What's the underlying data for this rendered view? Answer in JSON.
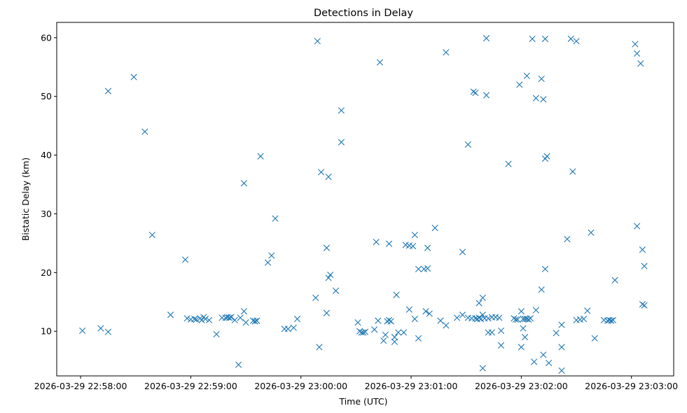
{
  "chart_data": {
    "type": "scatter",
    "title": "Detections in Delay",
    "xlabel": "Time (UTC)",
    "ylabel": "Bistatic Delay (km)",
    "marker": "x",
    "color": "#1f77b4",
    "xlim": [
      "2026-03-29 22:57:47",
      "2026-03-29 23:03:23"
    ],
    "ylim": [
      2.4,
      62.6
    ],
    "xticks": [
      "2026-03-29 22:58:00",
      "2026-03-29 22:59:00",
      "2026-03-29 23:00:00",
      "2026-03-29 23:01:00",
      "2026-03-29 23:02:00",
      "2026-03-29 23:03:00"
    ],
    "yticks": [
      10,
      20,
      30,
      40,
      50,
      60
    ],
    "grid": false,
    "points": [
      [
        "22:58:01",
        10.1
      ],
      [
        "22:58:11",
        10.5
      ],
      [
        "22:58:15",
        50.9
      ],
      [
        "22:58:15",
        9.9
      ],
      [
        "22:58:29",
        53.3
      ],
      [
        "22:58:35",
        44.0
      ],
      [
        "22:58:39",
        26.4
      ],
      [
        "22:58:49",
        12.8
      ],
      [
        "22:58:57",
        22.2
      ],
      [
        "22:58:58",
        12.2
      ],
      [
        "22:59:00",
        12.0
      ],
      [
        "22:59:02",
        12.1
      ],
      [
        "22:59:03",
        12.0
      ],
      [
        "22:59:05",
        12.2
      ],
      [
        "22:59:06",
        11.9
      ],
      [
        "22:59:07",
        12.4
      ],
      [
        "22:59:08",
        12.1
      ],
      [
        "22:59:10",
        11.9
      ],
      [
        "22:59:14",
        9.5
      ],
      [
        "22:59:17",
        12.3
      ],
      [
        "22:59:19",
        12.3
      ],
      [
        "22:59:20",
        12.4
      ],
      [
        "22:59:21",
        12.3
      ],
      [
        "22:59:22",
        12.4
      ],
      [
        "22:59:24",
        11.9
      ],
      [
        "22:59:26",
        4.3
      ],
      [
        "22:59:27",
        12.3
      ],
      [
        "22:59:29",
        35.2
      ],
      [
        "22:59:29",
        13.4
      ],
      [
        "22:59:30",
        11.5
      ],
      [
        "22:59:34",
        11.8
      ],
      [
        "22:59:35",
        11.7
      ],
      [
        "22:59:36",
        11.8
      ],
      [
        "22:59:38",
        39.8
      ],
      [
        "22:59:42",
        21.7
      ],
      [
        "22:59:44",
        22.9
      ],
      [
        "22:59:46",
        29.2
      ],
      [
        "22:59:51",
        10.4
      ],
      [
        "22:59:53",
        10.4
      ],
      [
        "22:59:56",
        10.6
      ],
      [
        "22:59:58",
        12.1
      ],
      [
        "23:00:08",
        15.7
      ],
      [
        "23:00:09",
        59.4
      ],
      [
        "23:00:10",
        7.3
      ],
      [
        "23:00:11",
        37.1
      ],
      [
        "23:00:14",
        24.2
      ],
      [
        "23:00:14",
        13.1
      ],
      [
        "23:00:15",
        36.3
      ],
      [
        "23:00:15",
        19.1
      ],
      [
        "23:00:16",
        19.6
      ],
      [
        "23:00:19",
        16.9
      ],
      [
        "23:00:22",
        47.6
      ],
      [
        "23:00:22",
        42.2
      ],
      [
        "23:00:31",
        11.5
      ],
      [
        "23:00:32",
        10.0
      ],
      [
        "23:00:33",
        9.8
      ],
      [
        "23:00:34",
        9.8
      ],
      [
        "23:00:35",
        9.9
      ],
      [
        "23:00:40",
        10.3
      ],
      [
        "23:00:41",
        25.2
      ],
      [
        "23:00:42",
        11.8
      ],
      [
        "23:00:43",
        55.8
      ],
      [
        "23:00:45",
        8.4
      ],
      [
        "23:00:46",
        9.4
      ],
      [
        "23:00:47",
        11.7
      ],
      [
        "23:00:48",
        24.9
      ],
      [
        "23:00:48",
        11.9
      ],
      [
        "23:00:49",
        11.7
      ],
      [
        "23:00:51",
        9.0
      ],
      [
        "23:00:51",
        8.2
      ],
      [
        "23:00:52",
        16.2
      ],
      [
        "23:00:53",
        9.8
      ],
      [
        "23:00:56",
        9.8
      ],
      [
        "23:00:57",
        24.7
      ],
      [
        "23:00:59",
        13.7
      ],
      [
        "23:00:59",
        24.6
      ],
      [
        "23:01:01",
        24.5
      ],
      [
        "23:01:02",
        26.4
      ],
      [
        "23:01:02",
        12.1
      ],
      [
        "23:01:04",
        8.8
      ],
      [
        "23:01:04",
        20.6
      ],
      [
        "23:01:07",
        20.6
      ],
      [
        "23:01:08",
        13.4
      ],
      [
        "23:01:09",
        24.2
      ],
      [
        "23:01:09",
        20.7
      ],
      [
        "23:01:10",
        13.0
      ],
      [
        "23:01:13",
        27.6
      ],
      [
        "23:01:16",
        11.8
      ],
      [
        "23:01:19",
        57.5
      ],
      [
        "23:01:19",
        11.0
      ],
      [
        "23:01:25",
        12.3
      ],
      [
        "23:01:28",
        12.8
      ],
      [
        "23:01:28",
        23.5
      ],
      [
        "23:01:31",
        12.3
      ],
      [
        "23:01:31",
        41.8
      ],
      [
        "23:01:33",
        12.2
      ],
      [
        "23:01:34",
        50.8
      ],
      [
        "23:01:35",
        12.2
      ],
      [
        "23:01:35",
        50.6
      ],
      [
        "23:01:36",
        12.1
      ],
      [
        "23:01:37",
        14.8
      ],
      [
        "23:01:37",
        12.3
      ],
      [
        "23:01:38",
        12.1
      ],
      [
        "23:01:39",
        3.7
      ],
      [
        "23:01:39",
        12.8
      ],
      [
        "23:01:39",
        15.7
      ],
      [
        "23:01:40",
        12.2
      ],
      [
        "23:01:41",
        59.9
      ],
      [
        "23:01:41",
        50.2
      ],
      [
        "23:01:42",
        12.2
      ],
      [
        "23:01:42",
        9.8
      ],
      [
        "23:01:44",
        9.8
      ],
      [
        "23:01:44",
        12.4
      ],
      [
        "23:01:46",
        12.4
      ],
      [
        "23:01:48",
        12.3
      ],
      [
        "23:01:49",
        7.6
      ],
      [
        "23:01:49",
        10.1
      ],
      [
        "23:01:53",
        38.5
      ],
      [
        "23:01:56",
        12.2
      ],
      [
        "23:01:57",
        12.0
      ],
      [
        "23:01:58",
        12.0
      ],
      [
        "23:01:59",
        52.0
      ],
      [
        "23:02:00",
        7.3
      ],
      [
        "23:02:00",
        13.4
      ],
      [
        "23:02:01",
        12.1
      ],
      [
        "23:02:01",
        10.5
      ],
      [
        "23:02:02",
        12.1
      ],
      [
        "23:02:02",
        9.0
      ],
      [
        "23:02:03",
        12.1
      ],
      [
        "23:02:03",
        53.5
      ],
      [
        "23:02:04",
        12.0
      ],
      [
        "23:02:05",
        12.2
      ],
      [
        "23:02:06",
        59.8
      ],
      [
        "23:02:07",
        4.8
      ],
      [
        "23:02:08",
        13.6
      ],
      [
        "23:02:08",
        49.7
      ],
      [
        "23:02:11",
        53.0
      ],
      [
        "23:02:11",
        17.1
      ],
      [
        "23:02:12",
        49.5
      ],
      [
        "23:02:12",
        6.0
      ],
      [
        "23:02:13",
        59.8
      ],
      [
        "23:02:13",
        20.6
      ],
      [
        "23:02:13",
        39.4
      ],
      [
        "23:02:14",
        39.8
      ],
      [
        "23:02:15",
        4.6
      ],
      [
        "23:02:19",
        9.7
      ],
      [
        "23:02:22",
        7.3
      ],
      [
        "23:02:22",
        3.3
      ],
      [
        "23:02:22",
        11.1
      ],
      [
        "23:02:25",
        25.7
      ],
      [
        "23:02:27",
        59.8
      ],
      [
        "23:02:28",
        37.2
      ],
      [
        "23:02:30",
        11.9
      ],
      [
        "23:02:30",
        59.4
      ],
      [
        "23:02:32",
        12.0
      ],
      [
        "23:02:34",
        12.1
      ],
      [
        "23:02:36",
        13.5
      ],
      [
        "23:02:38",
        26.8
      ],
      [
        "23:02:40",
        8.8
      ],
      [
        "23:02:45",
        11.9
      ],
      [
        "23:02:47",
        11.8
      ],
      [
        "23:02:48",
        11.9
      ],
      [
        "23:02:49",
        11.8
      ],
      [
        "23:02:50",
        11.9
      ],
      [
        "23:02:51",
        18.7
      ],
      [
        "23:03:02",
        58.9
      ],
      [
        "23:03:03",
        57.3
      ],
      [
        "23:03:03",
        27.9
      ],
      [
        "23:03:05",
        55.6
      ],
      [
        "23:03:06",
        14.6
      ],
      [
        "23:03:06",
        23.9
      ],
      [
        "23:03:07",
        21.1
      ],
      [
        "23:03:07",
        14.4
      ]
    ]
  }
}
